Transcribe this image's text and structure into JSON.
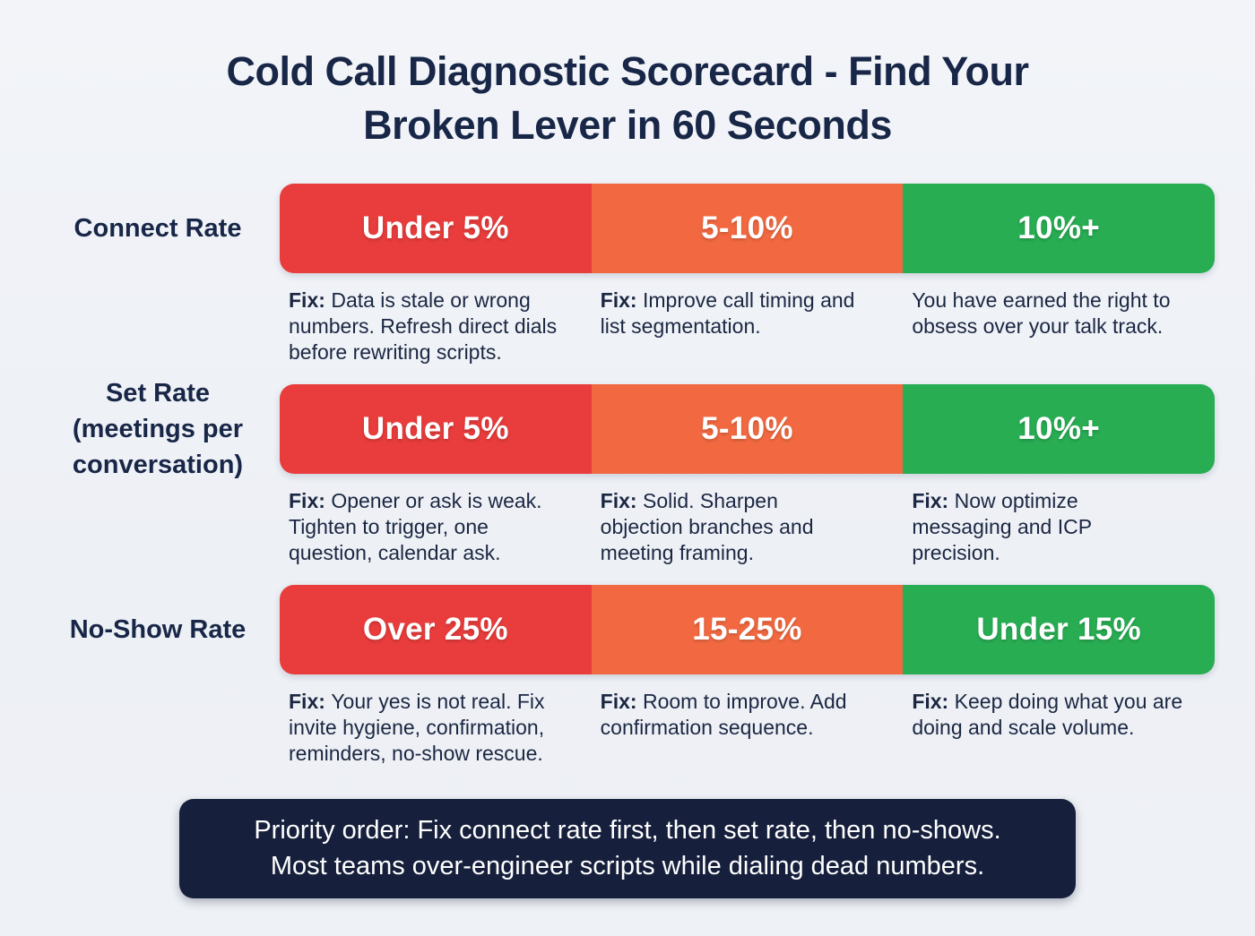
{
  "title": "Cold Call Diagnostic Scorecard - Find Your\nBroken Lever in 60 Seconds",
  "colors": {
    "background": "#eef1f6",
    "heading_navy": "#182647",
    "body_navy": "#1b2742",
    "segment_red": "#e93c3c",
    "segment_orange": "#f26941",
    "segment_green": "#28ad53",
    "footer_background": "#16203c",
    "segment_text": "#ffffff"
  },
  "rows": [
    {
      "metric": "Connect Rate",
      "cells": [
        {
          "range": "Under 5%",
          "severity": "red",
          "fix_prefix": "Fix:",
          "fix_text": "Data is stale or wrong\nnumbers. Refresh direct dials\nbefore rewriting scripts."
        },
        {
          "range": "5-10%",
          "severity": "orange",
          "fix_prefix": "Fix:",
          "fix_text": "Improve call timing and\nlist segmentation."
        },
        {
          "range": "10%+",
          "severity": "green",
          "fix_prefix": "",
          "fix_text": "You have earned the right to\nobsess over your talk track."
        }
      ]
    },
    {
      "metric": "Set Rate\n(meetings per\nconversation)",
      "cells": [
        {
          "range": "Under 5%",
          "severity": "red",
          "fix_prefix": "Fix:",
          "fix_text": "Opener or ask is weak.\nTighten to trigger, one\nquestion, calendar ask."
        },
        {
          "range": "5-10%",
          "severity": "orange",
          "fix_prefix": "Fix:",
          "fix_text": "Solid. Sharpen\nobjection branches and\nmeeting framing."
        },
        {
          "range": "10%+",
          "severity": "green",
          "fix_prefix": "Fix:",
          "fix_text": "Now optimize\nmessaging and ICP\nprecision."
        }
      ]
    },
    {
      "metric": "No-Show Rate",
      "cells": [
        {
          "range": "Over 25%",
          "severity": "red",
          "fix_prefix": "Fix:",
          "fix_text": "Your yes is not real. Fix\ninvite hygiene, confirmation,\nreminders, no-show rescue."
        },
        {
          "range": "15-25%",
          "severity": "orange",
          "fix_prefix": "Fix:",
          "fix_text": "Room to improve. Add\nconfirmation sequence."
        },
        {
          "range": "Under 15%",
          "severity": "green",
          "fix_prefix": "Fix:",
          "fix_text": "Keep doing what you are\ndoing and scale volume."
        }
      ]
    }
  ],
  "footer": {
    "line1": "Priority order: Fix connect rate first, then set rate, then no-shows.",
    "line2": "Most teams over-engineer scripts while dialing dead numbers."
  }
}
